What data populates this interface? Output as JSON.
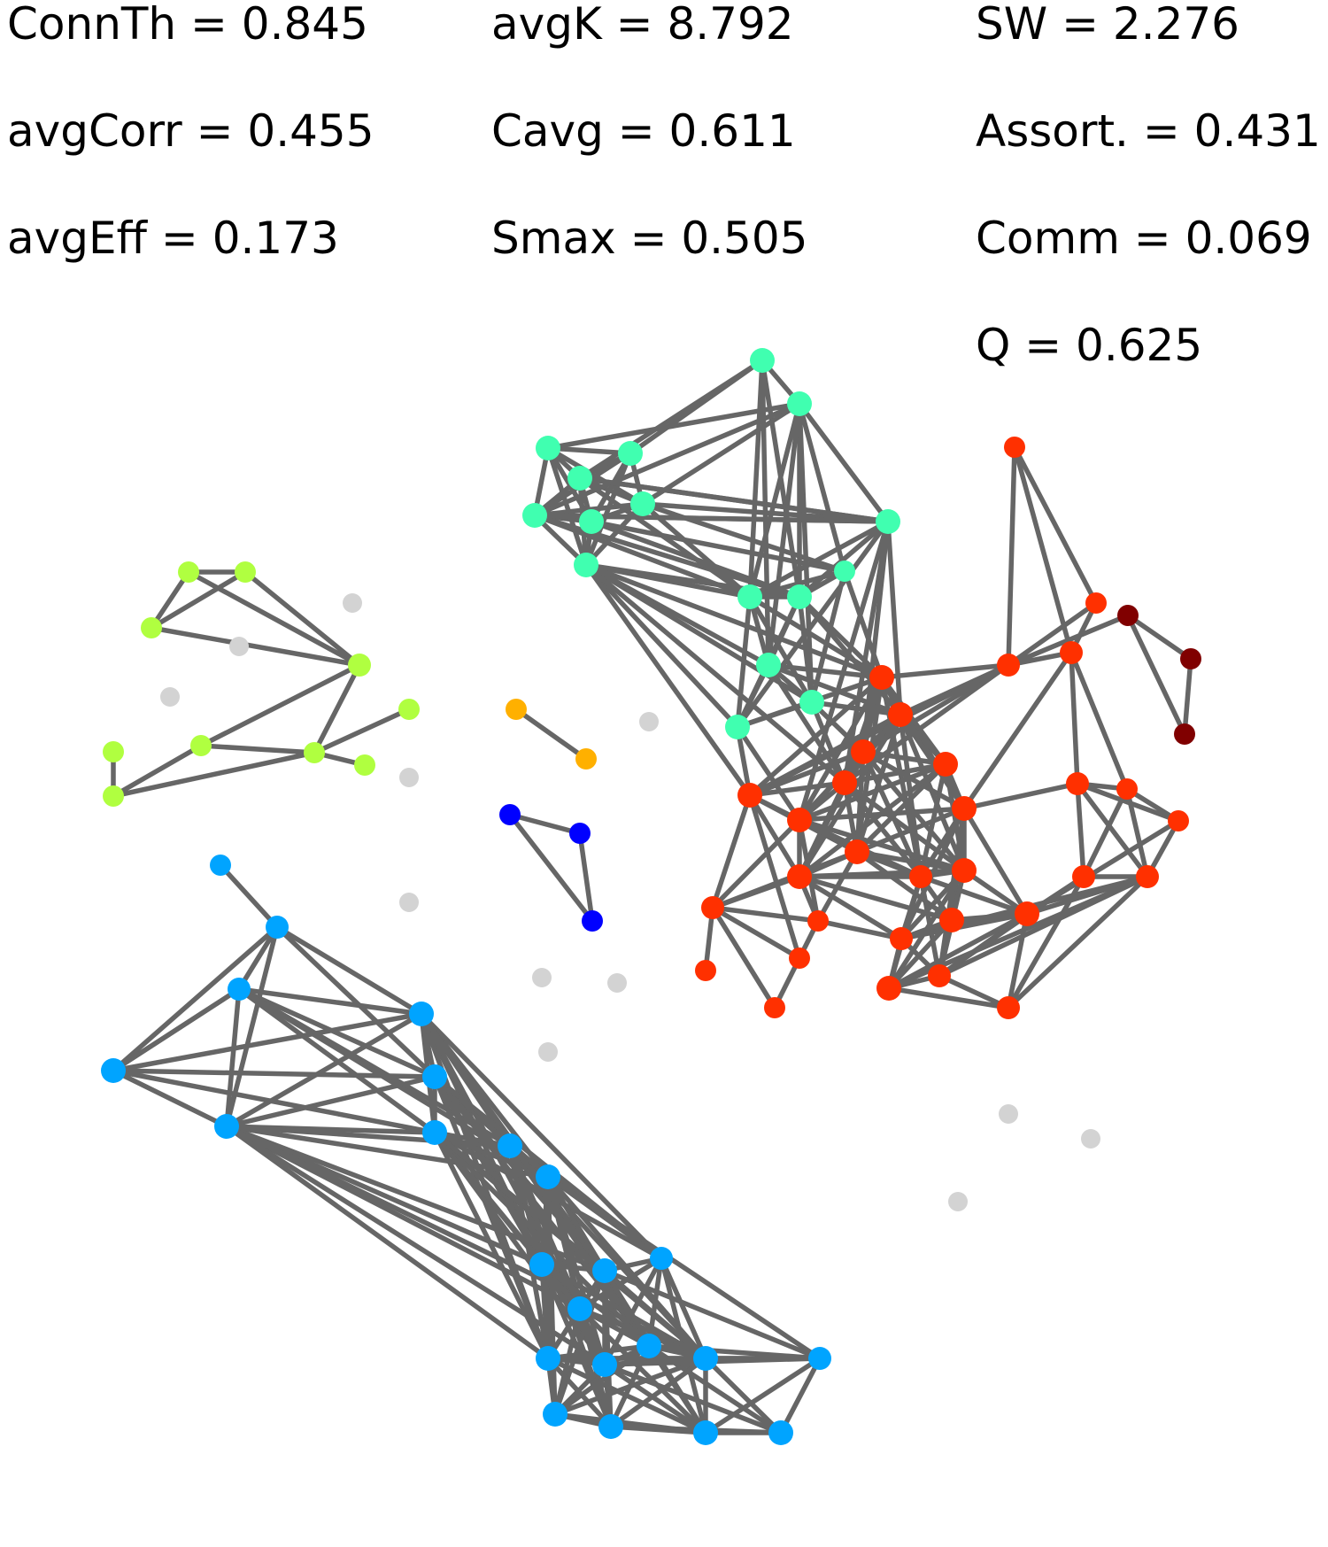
{
  "metrics": [
    {
      "id": "connth",
      "label": "ConnTh = 0.845"
    },
    {
      "id": "avgk",
      "label": "avgK = 8.792"
    },
    {
      "id": "sw",
      "label": "SW = 2.276"
    },
    {
      "id": "avgcorr",
      "label": "avgCorr = 0.455"
    },
    {
      "id": "cavg",
      "label": "Cavg = 0.611"
    },
    {
      "id": "assort",
      "label": "Assort. = 0.431"
    },
    {
      "id": "avgeff",
      "label": "avgEff = 0.173"
    },
    {
      "id": "smax",
      "label": "Smax = 0.505"
    },
    {
      "id": "comm",
      "label": "Comm = 0.069"
    },
    {
      "id": "q",
      "label": "Q = 0.625"
    }
  ],
  "graph": {
    "edge_color": "#666666",
    "community_colors": {
      "teal": "#40ffb0",
      "red": "#ff3000",
      "darkred": "#800000",
      "lime": "#b0ff40",
      "orange": "#ffb000",
      "blue": "#0000ff",
      "skyblue": "#00a4ff",
      "isolated": "#d3d3d3"
    }
  }
}
